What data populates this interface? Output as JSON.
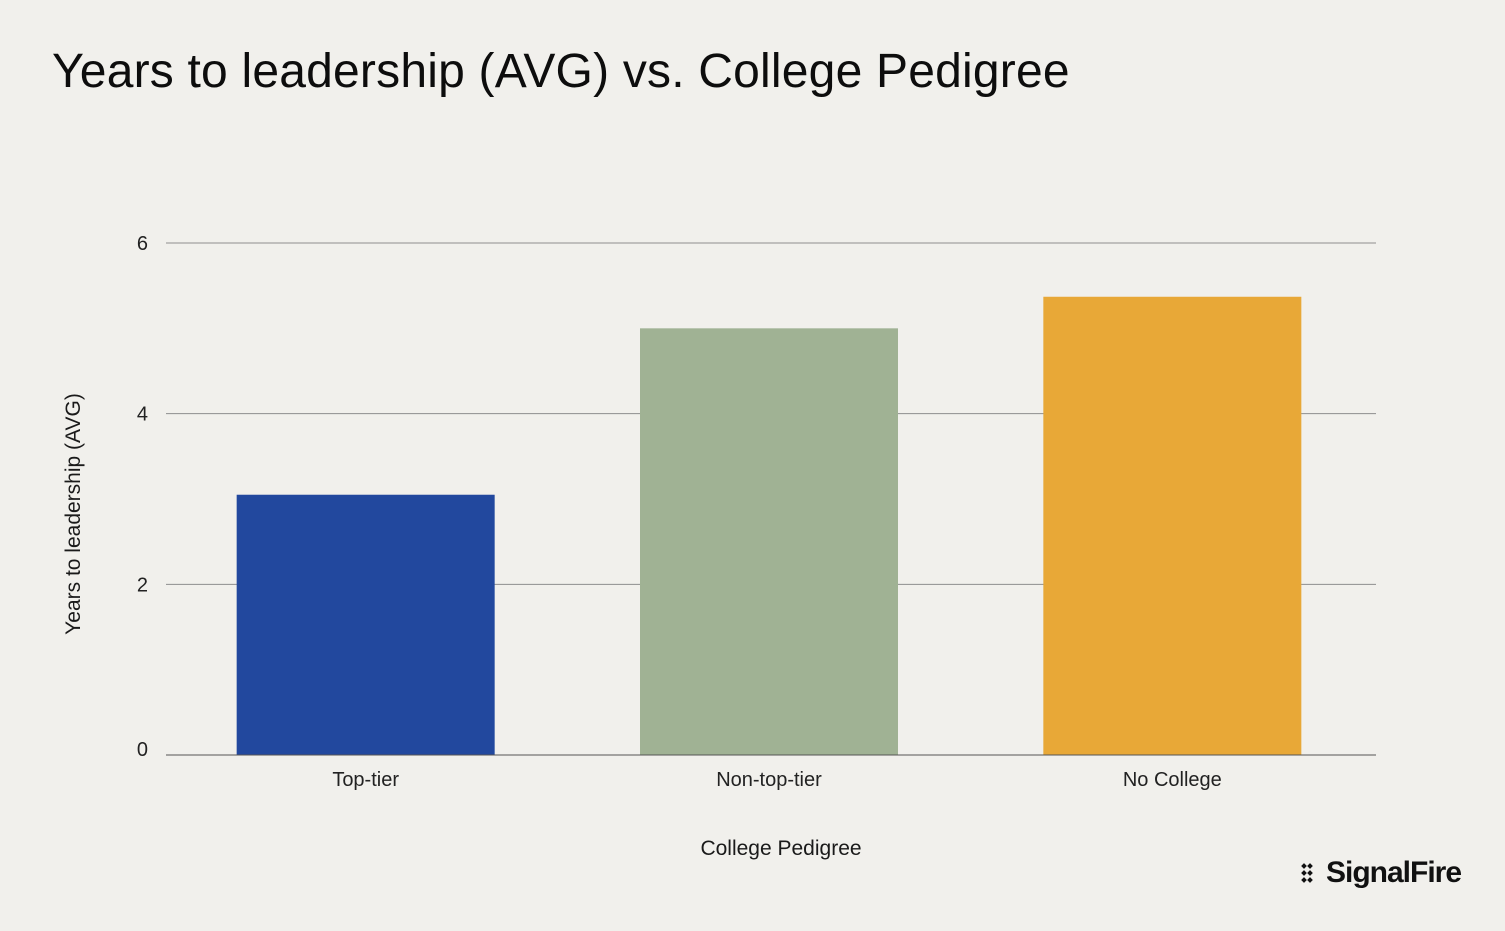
{
  "title": "Years to leadership (AVG) vs. College Pedigree",
  "logo": {
    "text": "SignalFire",
    "icon": "signalfire-mark-icon"
  },
  "chart_data": {
    "type": "bar",
    "title": "Years to leadership (AVG) vs. College Pedigree",
    "xlabel": "College Pedigree",
    "ylabel": "Years to leadership (AVG)",
    "categories": [
      "Top-tier",
      "Non-top-tier",
      "No College"
    ],
    "values": [
      3.05,
      5.0,
      5.37
    ],
    "colors": [
      "#22489e",
      "#a0b294",
      "#e8a837"
    ],
    "ylim": [
      0,
      6
    ],
    "yticks": [
      0,
      2,
      4,
      6
    ],
    "grid": true,
    "legend": "none"
  }
}
